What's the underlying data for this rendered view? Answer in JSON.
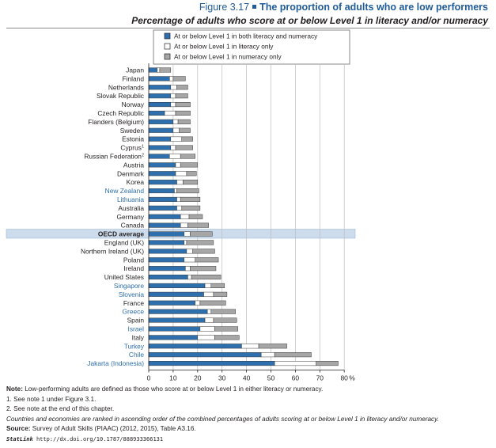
{
  "header": {
    "figure_number": "Figure 3.17",
    "title": "The proportion of adults who are low performers",
    "subtitle": "Percentage of adults who score at or below Level 1 in literacy and/or numeracy"
  },
  "notes": {
    "note_label": "Note:",
    "note_text": " Low-performing adults are defined as those who score at or below Level 1 in either literacy or numeracy.",
    "note_1": "1. See note 1 under Figure 3.1.",
    "note_2": "2. See note at the end of this chapter.",
    "ranking_note": "Countries and economies are ranked in ascending order of the combined percentages of adults scoring at or below Level 1 in literacy and/or numeracy.",
    "source_label": "Source:",
    "source_text": " Survey of Adult Skills (PIAAC) (2012, 2015), Table A3.16.",
    "statlink_label": "StatLink",
    "statlink_url": "http://dx.doi.org/10.1787/888933366131"
  },
  "colors": {
    "both": "#2e6fad",
    "literacy_only": "#ffffff",
    "numeracy_only": "#a6a6a6",
    "highlight_label": "#2e6fad",
    "oecd_band": "#cddcec"
  },
  "chart_data": {
    "type": "bar",
    "orientation": "horizontal",
    "stacked": true,
    "xlim": [
      0,
      80
    ],
    "x_unit": "%",
    "xticks": [
      0,
      10,
      20,
      30,
      40,
      50,
      60,
      70,
      80
    ],
    "grid": "vertical",
    "legend_position": "top",
    "categories": [
      "Japan",
      "Finland",
      "Netherlands",
      "Slovak Republic",
      "Norway",
      "Czech Republic",
      "Flanders (Belgium)",
      "Sweden",
      "Estonia",
      "Cyprus",
      "Russian Federation",
      "Austria",
      "Denmark",
      "Korea",
      "New Zealand",
      "Lithuania",
      "Australia",
      "Germany",
      "Canada",
      "OECD average",
      "England (UK)",
      "Northern Ireland (UK)",
      "Poland",
      "Ireland",
      "United States",
      "Singapore",
      "Slovenia",
      "France",
      "Greece",
      "Spain",
      "Israel",
      "Italy",
      "Turkey",
      "Chile",
      "Jakarta (Indonesia)"
    ],
    "category_superscripts": {
      "Cyprus": "1",
      "Russian Federation": "2"
    },
    "highlighted_categories": [
      "New Zealand",
      "Lithuania",
      "Singapore",
      "Slovenia",
      "Greece",
      "Israel",
      "Turkey",
      "Chile",
      "Jakarta (Indonesia)"
    ],
    "emphasized_category": "OECD average",
    "series": [
      {
        "name": "At or below Level 1 in both literacy and numeracy",
        "values": [
          3.5,
          8.5,
          9,
          9,
          9,
          6.5,
          10,
          10,
          9,
          9,
          8.5,
          11,
          11,
          11.5,
          10.5,
          11.5,
          11.5,
          13,
          13,
          14.5,
          14.5,
          15.5,
          14.5,
          15,
          16,
          23,
          22.5,
          19,
          24,
          23,
          21,
          20,
          38,
          46,
          51.5
        ]
      },
      {
        "name": "At or below Level 1 in literacy only",
        "values": [
          1,
          1.5,
          2.5,
          2,
          2,
          4.5,
          2,
          2.5,
          4.5,
          2,
          4.5,
          2,
          4.5,
          2.5,
          1,
          1.5,
          2,
          3.5,
          3,
          2.5,
          1,
          2.5,
          4.5,
          2,
          1.5,
          2.5,
          4,
          2,
          1.5,
          3.5,
          6,
          7,
          7,
          5.5,
          17
        ]
      },
      {
        "name": "At or below Level 1 in numeracy only",
        "values": [
          4.5,
          5,
          4.5,
          5,
          6,
          6,
          5,
          4.5,
          4.5,
          7,
          6,
          7,
          4,
          6,
          9,
          8,
          7.5,
          5.5,
          8.5,
          9,
          11,
          9,
          9.5,
          10.5,
          12,
          5.5,
          5.5,
          10.5,
          10,
          9.5,
          9.5,
          10,
          11.5,
          15,
          9
        ]
      }
    ]
  }
}
